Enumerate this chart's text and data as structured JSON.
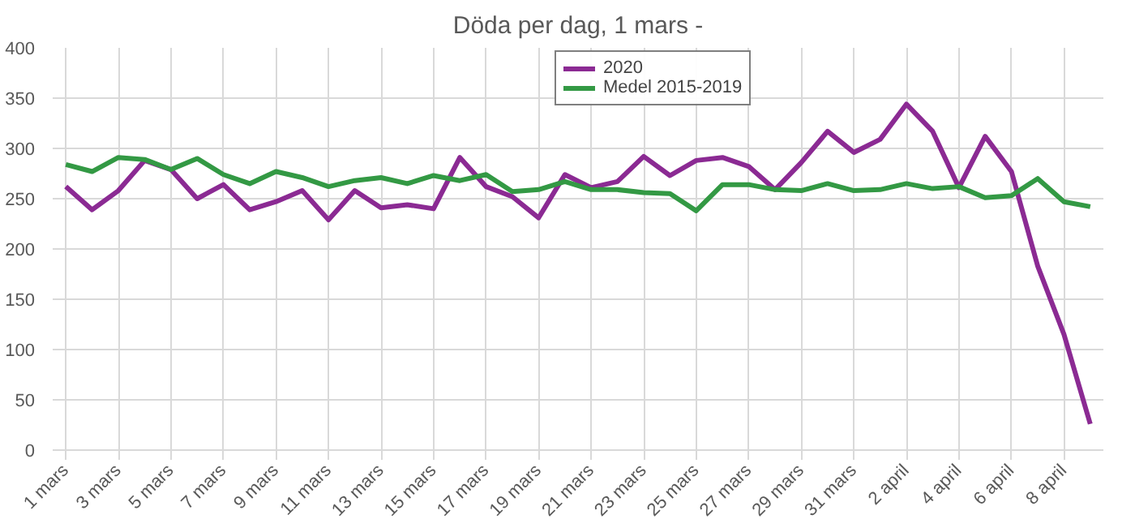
{
  "chart_data": {
    "type": "line",
    "title": "Döda per dag, 1 mars -",
    "categories": [
      "1 mars",
      null,
      "3 mars",
      null,
      "5 mars",
      null,
      "7 mars",
      null,
      "9 mars",
      null,
      "11 mars",
      null,
      "13 mars",
      null,
      "15 mars",
      null,
      "17 mars",
      null,
      "19 mars",
      null,
      "21 mars",
      null,
      "23 mars",
      null,
      "25 mars",
      null,
      "27 mars",
      null,
      "29 mars",
      null,
      "31 mars",
      null,
      "2 april",
      null,
      "4 april",
      null,
      "6 april",
      null,
      "8 april",
      null
    ],
    "series": [
      {
        "name": "2020",
        "color": "#8b2a93",
        "values": [
          262,
          239,
          258,
          288,
          279,
          250,
          264,
          239,
          247,
          258,
          229,
          258,
          241,
          244,
          240,
          291,
          262,
          252,
          231,
          274,
          261,
          267,
          292,
          273,
          288,
          291,
          282,
          259,
          286,
          317,
          296,
          309,
          344,
          317,
          261,
          312,
          277,
          183,
          115,
          26
        ]
      },
      {
        "name": "Medel 2015-2019",
        "color": "#339944",
        "values": [
          284,
          277,
          291,
          289,
          279,
          290,
          274,
          265,
          277,
          271,
          262,
          268,
          271,
          265,
          273,
          268,
          274,
          257,
          259,
          267,
          259,
          259,
          256,
          255,
          238,
          264,
          264,
          259,
          258,
          265,
          258,
          259,
          265,
          260,
          262,
          251,
          253,
          270,
          247,
          242
        ]
      }
    ],
    "ylim": [
      0,
      400
    ],
    "yticks": [
      0,
      50,
      100,
      150,
      200,
      250,
      300,
      350,
      400
    ],
    "grid": true,
    "legend": "top right",
    "line_style": "solid"
  }
}
